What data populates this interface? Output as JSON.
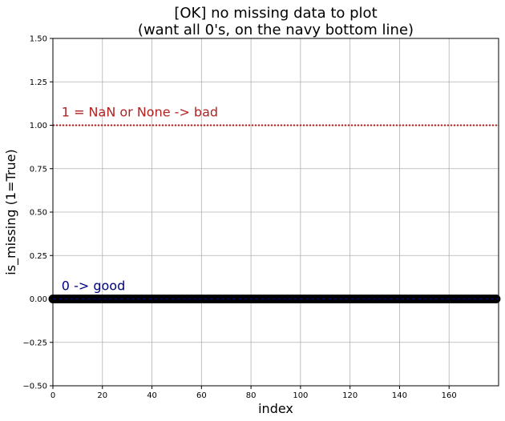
{
  "chart_data": {
    "type": "scatter",
    "title_lines": [
      "[OK] no missing data to plot",
      "(want all 0's, on the navy bottom line)"
    ],
    "xlabel": "index",
    "ylabel": "is_missing (1=True)",
    "xlim": [
      0,
      180
    ],
    "ylim": [
      -0.5,
      1.5
    ],
    "xticks": [
      0,
      20,
      40,
      60,
      80,
      100,
      120,
      140,
      160
    ],
    "yticks": [
      -0.5,
      -0.25,
      0.0,
      0.25,
      0.5,
      0.75,
      1.0,
      1.25,
      1.5
    ],
    "xtick_labels": [
      "0",
      "20",
      "40",
      "60",
      "80",
      "100",
      "120",
      "140",
      "160"
    ],
    "ytick_labels": [
      "−0.50",
      "−0.25",
      "0.00",
      "0.25",
      "0.50",
      "0.75",
      "1.00",
      "1.25",
      "1.50"
    ],
    "grid": true,
    "series": [
      {
        "color": "#000000",
        "x_start": 0,
        "x_end": 179,
        "y": 0
      }
    ],
    "reference_lines": [
      {
        "y": 1.0,
        "style": "dotted",
        "color": "#b22222"
      },
      {
        "y": 0.0,
        "style": "dashed",
        "color": "#000080"
      }
    ],
    "annotations": [
      {
        "text": "1 = NaN or None -> bad",
        "x": 3.5,
        "y": 1.05,
        "color": "#b22222"
      },
      {
        "text": "0 -> good",
        "x": 3.5,
        "y": 0.05,
        "color": "#000080"
      }
    ]
  }
}
